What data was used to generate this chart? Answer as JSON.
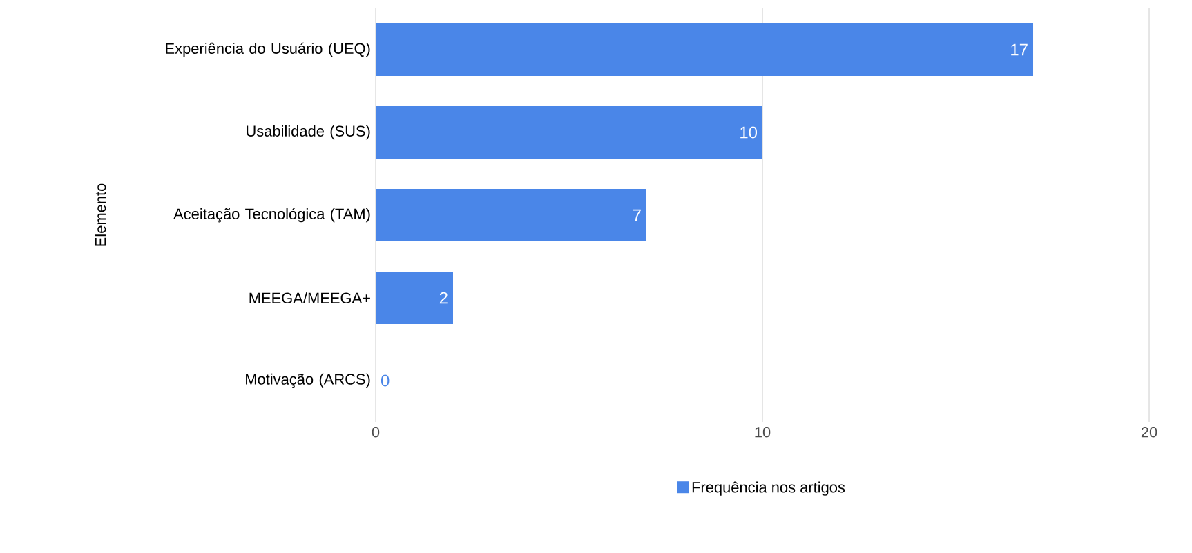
{
  "chart_data": {
    "type": "bar",
    "orientation": "horizontal",
    "ylabel": "Elemento",
    "categories": [
      "Experiência do Usuário (UEQ)",
      "Usabilidade (SUS)",
      "Aceitação Tecnológica (TAM)",
      "MEEGA/MEEGA+",
      "Motivação (ARCS)"
    ],
    "series": [
      {
        "name": "Frequência nos artigos",
        "color": "#4a86e8",
        "values": [
          17,
          10,
          7,
          2,
          0
        ]
      }
    ],
    "xlim": [
      0,
      20
    ],
    "xticks": [
      0,
      10,
      20
    ],
    "grid": "x",
    "legend": "bottom",
    "data_labels": true
  }
}
